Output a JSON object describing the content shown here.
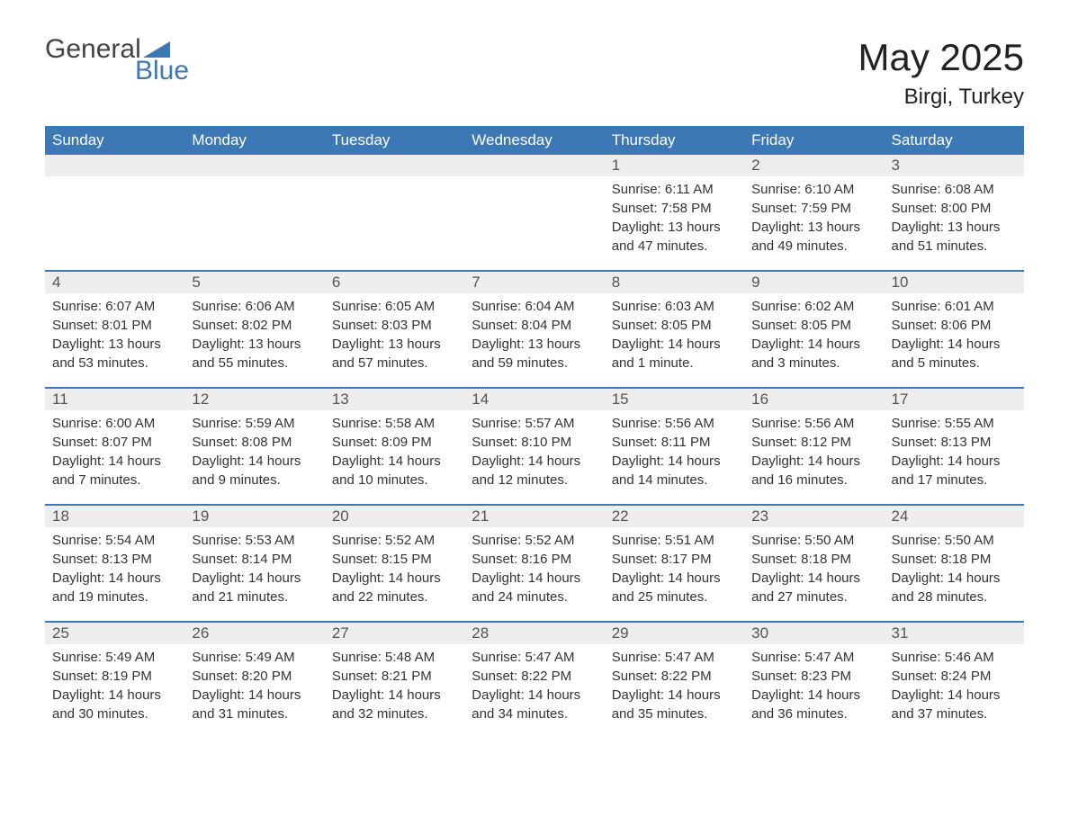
{
  "logo": {
    "word1": "General",
    "word2": "Blue"
  },
  "title": "May 2025",
  "location": "Birgi, Turkey",
  "colors": {
    "header_bg": "#3b78b5",
    "header_text": "#ffffff",
    "border": "#3b78b5",
    "daynum_bg": "#ededed",
    "daynum_text": "#555555",
    "body_text": "#333333",
    "logo_gray": "#444444",
    "logo_blue": "#3b78b5",
    "page_bg": "#ffffff"
  },
  "weekdays": [
    "Sunday",
    "Monday",
    "Tuesday",
    "Wednesday",
    "Thursday",
    "Friday",
    "Saturday"
  ],
  "weeks": [
    [
      {
        "blank": true
      },
      {
        "blank": true
      },
      {
        "blank": true
      },
      {
        "blank": true
      },
      {
        "num": "1",
        "sunrise": "Sunrise: 6:11 AM",
        "sunset": "Sunset: 7:58 PM",
        "daylight": "Daylight: 13 hours and 47 minutes."
      },
      {
        "num": "2",
        "sunrise": "Sunrise: 6:10 AM",
        "sunset": "Sunset: 7:59 PM",
        "daylight": "Daylight: 13 hours and 49 minutes."
      },
      {
        "num": "3",
        "sunrise": "Sunrise: 6:08 AM",
        "sunset": "Sunset: 8:00 PM",
        "daylight": "Daylight: 13 hours and 51 minutes."
      }
    ],
    [
      {
        "num": "4",
        "sunrise": "Sunrise: 6:07 AM",
        "sunset": "Sunset: 8:01 PM",
        "daylight": "Daylight: 13 hours and 53 minutes."
      },
      {
        "num": "5",
        "sunrise": "Sunrise: 6:06 AM",
        "sunset": "Sunset: 8:02 PM",
        "daylight": "Daylight: 13 hours and 55 minutes."
      },
      {
        "num": "6",
        "sunrise": "Sunrise: 6:05 AM",
        "sunset": "Sunset: 8:03 PM",
        "daylight": "Daylight: 13 hours and 57 minutes."
      },
      {
        "num": "7",
        "sunrise": "Sunrise: 6:04 AM",
        "sunset": "Sunset: 8:04 PM",
        "daylight": "Daylight: 13 hours and 59 minutes."
      },
      {
        "num": "8",
        "sunrise": "Sunrise: 6:03 AM",
        "sunset": "Sunset: 8:05 PM",
        "daylight": "Daylight: 14 hours and 1 minute."
      },
      {
        "num": "9",
        "sunrise": "Sunrise: 6:02 AM",
        "sunset": "Sunset: 8:05 PM",
        "daylight": "Daylight: 14 hours and 3 minutes."
      },
      {
        "num": "10",
        "sunrise": "Sunrise: 6:01 AM",
        "sunset": "Sunset: 8:06 PM",
        "daylight": "Daylight: 14 hours and 5 minutes."
      }
    ],
    [
      {
        "num": "11",
        "sunrise": "Sunrise: 6:00 AM",
        "sunset": "Sunset: 8:07 PM",
        "daylight": "Daylight: 14 hours and 7 minutes."
      },
      {
        "num": "12",
        "sunrise": "Sunrise: 5:59 AM",
        "sunset": "Sunset: 8:08 PM",
        "daylight": "Daylight: 14 hours and 9 minutes."
      },
      {
        "num": "13",
        "sunrise": "Sunrise: 5:58 AM",
        "sunset": "Sunset: 8:09 PM",
        "daylight": "Daylight: 14 hours and 10 minutes."
      },
      {
        "num": "14",
        "sunrise": "Sunrise: 5:57 AM",
        "sunset": "Sunset: 8:10 PM",
        "daylight": "Daylight: 14 hours and 12 minutes."
      },
      {
        "num": "15",
        "sunrise": "Sunrise: 5:56 AM",
        "sunset": "Sunset: 8:11 PM",
        "daylight": "Daylight: 14 hours and 14 minutes."
      },
      {
        "num": "16",
        "sunrise": "Sunrise: 5:56 AM",
        "sunset": "Sunset: 8:12 PM",
        "daylight": "Daylight: 14 hours and 16 minutes."
      },
      {
        "num": "17",
        "sunrise": "Sunrise: 5:55 AM",
        "sunset": "Sunset: 8:13 PM",
        "daylight": "Daylight: 14 hours and 17 minutes."
      }
    ],
    [
      {
        "num": "18",
        "sunrise": "Sunrise: 5:54 AM",
        "sunset": "Sunset: 8:13 PM",
        "daylight": "Daylight: 14 hours and 19 minutes."
      },
      {
        "num": "19",
        "sunrise": "Sunrise: 5:53 AM",
        "sunset": "Sunset: 8:14 PM",
        "daylight": "Daylight: 14 hours and 21 minutes."
      },
      {
        "num": "20",
        "sunrise": "Sunrise: 5:52 AM",
        "sunset": "Sunset: 8:15 PM",
        "daylight": "Daylight: 14 hours and 22 minutes."
      },
      {
        "num": "21",
        "sunrise": "Sunrise: 5:52 AM",
        "sunset": "Sunset: 8:16 PM",
        "daylight": "Daylight: 14 hours and 24 minutes."
      },
      {
        "num": "22",
        "sunrise": "Sunrise: 5:51 AM",
        "sunset": "Sunset: 8:17 PM",
        "daylight": "Daylight: 14 hours and 25 minutes."
      },
      {
        "num": "23",
        "sunrise": "Sunrise: 5:50 AM",
        "sunset": "Sunset: 8:18 PM",
        "daylight": "Daylight: 14 hours and 27 minutes."
      },
      {
        "num": "24",
        "sunrise": "Sunrise: 5:50 AM",
        "sunset": "Sunset: 8:18 PM",
        "daylight": "Daylight: 14 hours and 28 minutes."
      }
    ],
    [
      {
        "num": "25",
        "sunrise": "Sunrise: 5:49 AM",
        "sunset": "Sunset: 8:19 PM",
        "daylight": "Daylight: 14 hours and 30 minutes."
      },
      {
        "num": "26",
        "sunrise": "Sunrise: 5:49 AM",
        "sunset": "Sunset: 8:20 PM",
        "daylight": "Daylight: 14 hours and 31 minutes."
      },
      {
        "num": "27",
        "sunrise": "Sunrise: 5:48 AM",
        "sunset": "Sunset: 8:21 PM",
        "daylight": "Daylight: 14 hours and 32 minutes."
      },
      {
        "num": "28",
        "sunrise": "Sunrise: 5:47 AM",
        "sunset": "Sunset: 8:22 PM",
        "daylight": "Daylight: 14 hours and 34 minutes."
      },
      {
        "num": "29",
        "sunrise": "Sunrise: 5:47 AM",
        "sunset": "Sunset: 8:22 PM",
        "daylight": "Daylight: 14 hours and 35 minutes."
      },
      {
        "num": "30",
        "sunrise": "Sunrise: 5:47 AM",
        "sunset": "Sunset: 8:23 PM",
        "daylight": "Daylight: 14 hours and 36 minutes."
      },
      {
        "num": "31",
        "sunrise": "Sunrise: 5:46 AM",
        "sunset": "Sunset: 8:24 PM",
        "daylight": "Daylight: 14 hours and 37 minutes."
      }
    ]
  ]
}
